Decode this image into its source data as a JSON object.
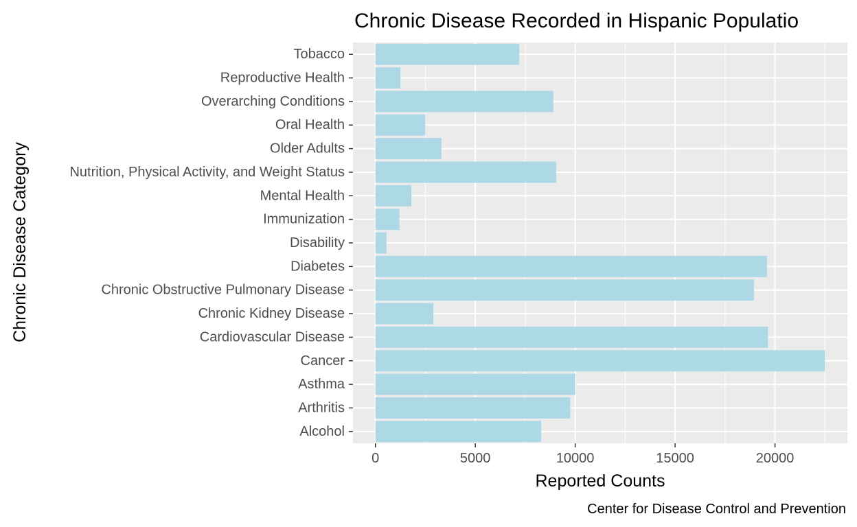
{
  "chart_data": {
    "type": "bar",
    "orientation": "horizontal",
    "title": "Chronic Disease Recorded in Hispanic Populatio",
    "xlabel": "Reported Counts",
    "ylabel": "Chronic Disease Category",
    "caption": "Center for Disease Control and Prevention",
    "categories": [
      "Alcohol",
      "Arthritis",
      "Asthma",
      "Cancer",
      "Cardiovascular Disease",
      "Chronic Kidney Disease",
      "Chronic Obstructive Pulmonary Disease",
      "Diabetes",
      "Disability",
      "Immunization",
      "Mental Health",
      "Nutrition, Physical Activity, and Weight Status",
      "Older Adults",
      "Oral Health",
      "Overarching Conditions",
      "Reproductive Health",
      "Tobacco"
    ],
    "values": [
      8300,
      9750,
      10000,
      22500,
      19650,
      2900,
      18950,
      19600,
      550,
      1200,
      1800,
      9050,
      3300,
      2500,
      8900,
      1250,
      7200
    ],
    "xlim": [
      -1125,
      23625
    ],
    "xticks": [
      0,
      5000,
      10000,
      15000,
      20000
    ],
    "xtick_labels": [
      "0",
      "5000",
      "10000",
      "15000",
      "20000"
    ],
    "grid": true,
    "colors": {
      "bar": "#add8e6",
      "panel": "#ebebeb",
      "gridline": "#ffffff"
    }
  }
}
